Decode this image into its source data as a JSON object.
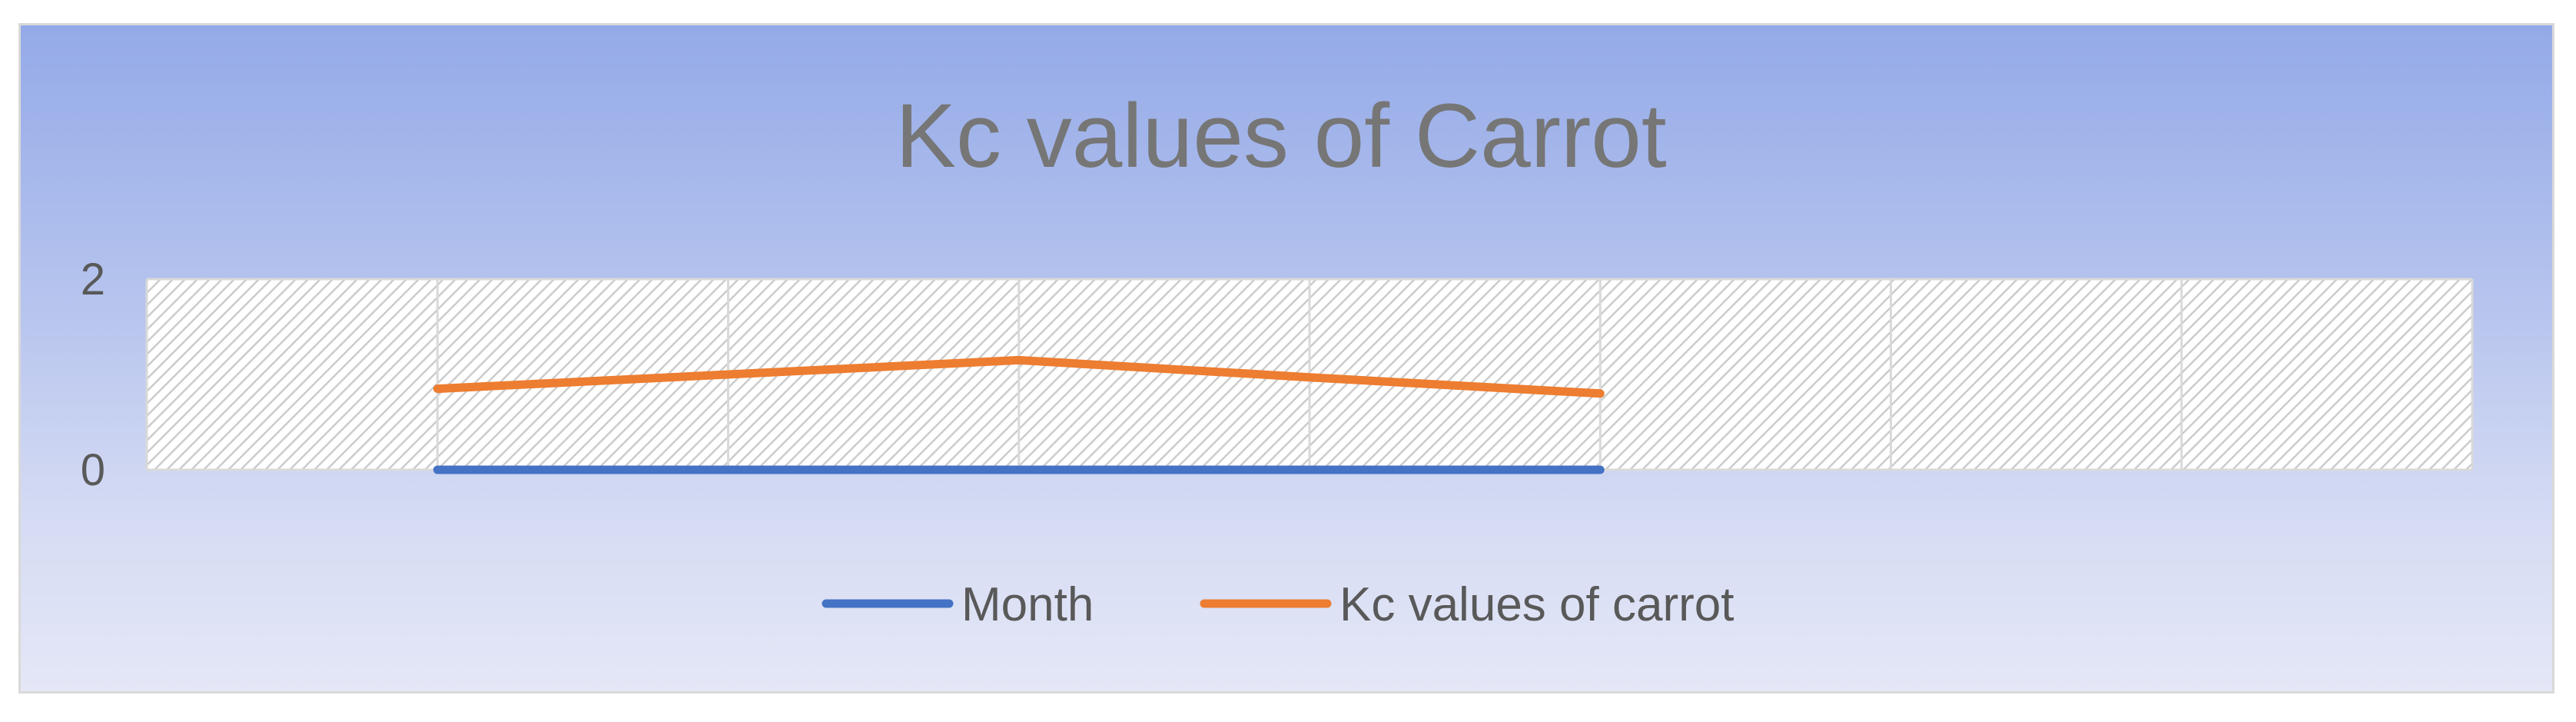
{
  "chart_data": {
    "type": "line",
    "title": "Kc values of Carrot",
    "xlabel": "",
    "ylabel": "",
    "ylim": [
      0,
      2
    ],
    "y_ticks": [
      "0",
      "2"
    ],
    "x_slots": 8,
    "grid": true,
    "plot_area_fill": "diagonal-hatch",
    "legend_position": "bottom",
    "series": [
      {
        "name": "Month",
        "color": "#4472c4",
        "x": [
          1,
          2,
          3,
          4,
          5
        ],
        "values": [
          0,
          0,
          0,
          0,
          0
        ]
      },
      {
        "name": "Kc values of carrot",
        "color": "#ed7d31",
        "x": [
          1,
          2,
          3,
          4,
          5
        ],
        "values": [
          0.85,
          1.0,
          1.15,
          0.97,
          0.8
        ]
      }
    ]
  }
}
